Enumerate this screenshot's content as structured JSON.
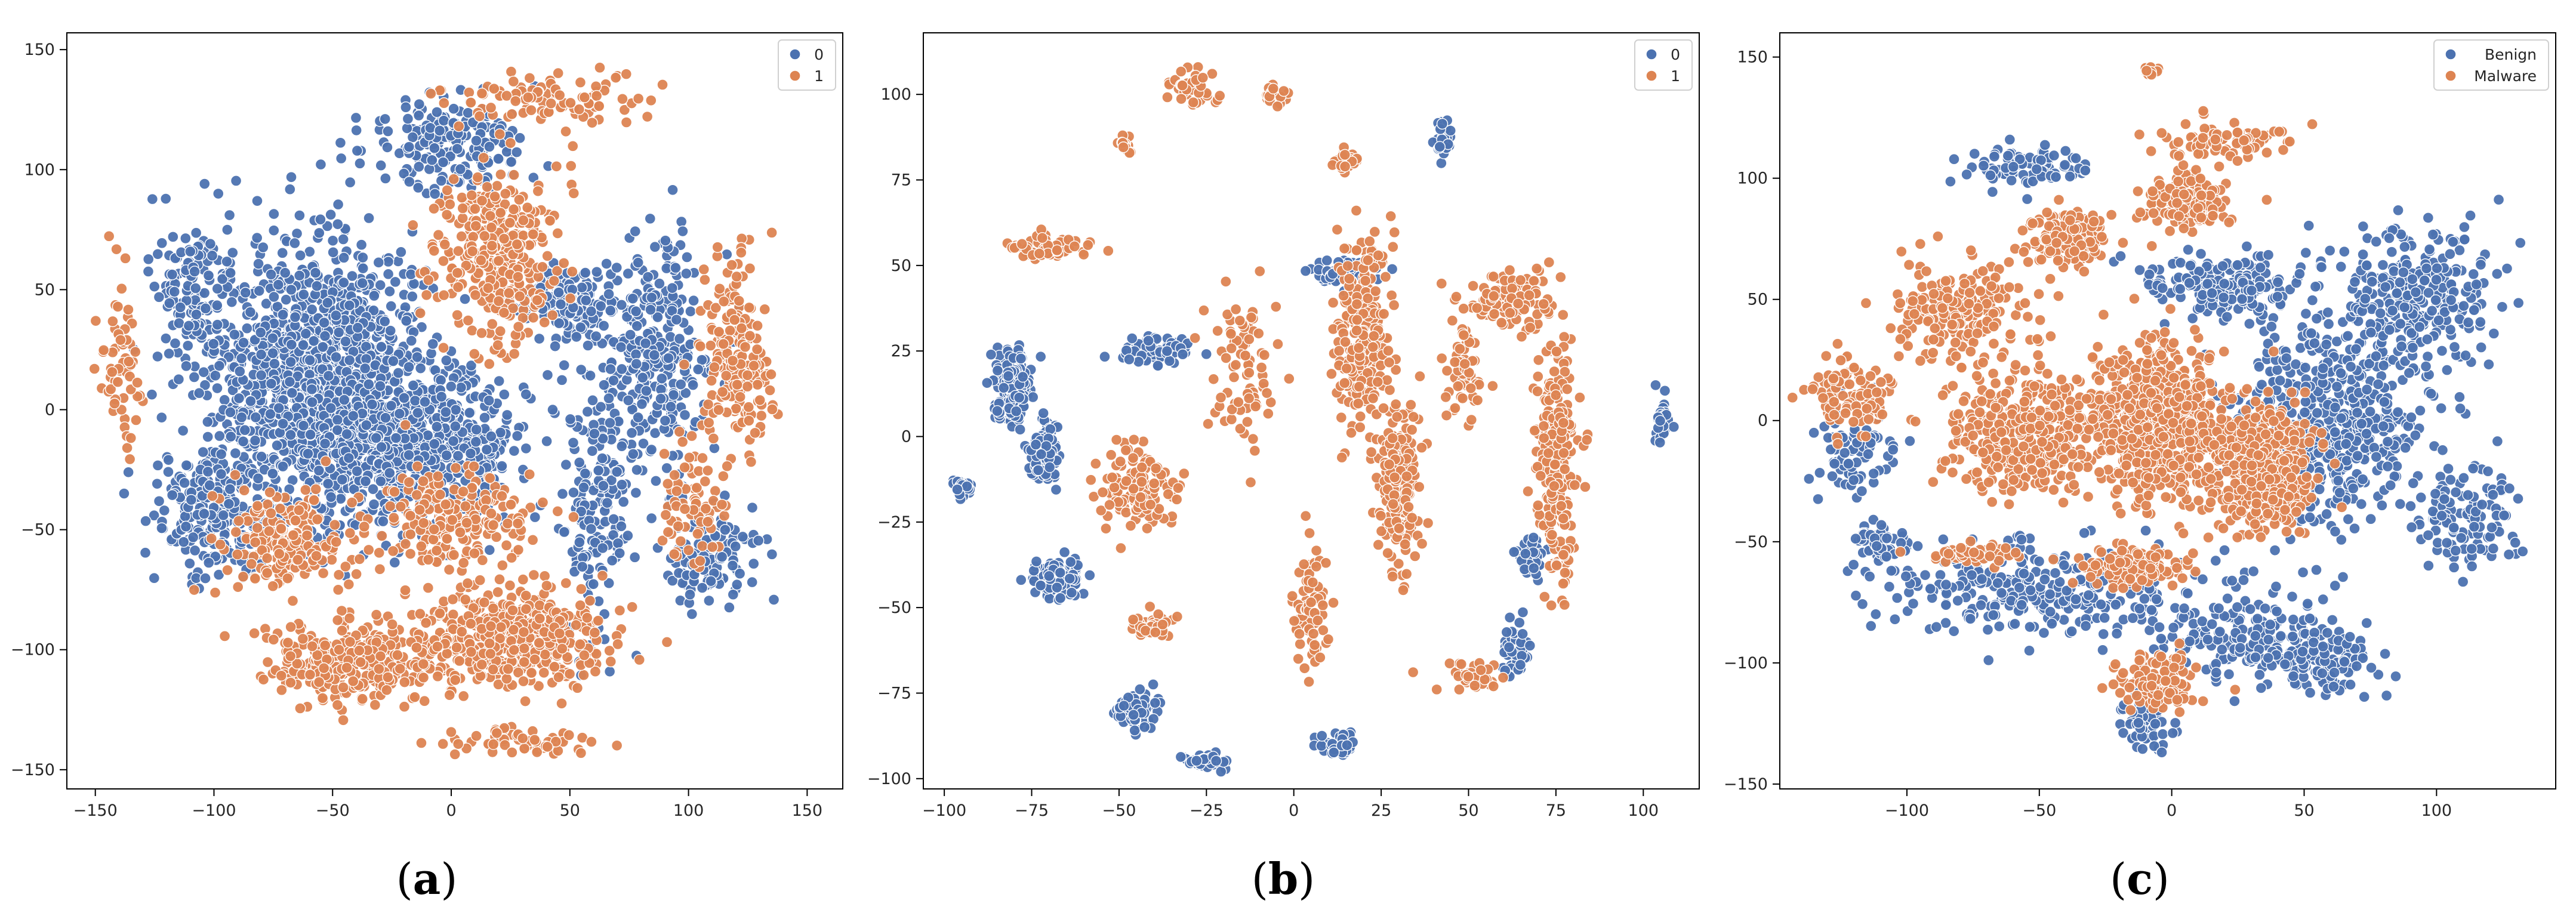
{
  "figure": {
    "captions": [
      "(a)",
      "(b)",
      "(c)"
    ],
    "caption_letters": [
      "a",
      "b",
      "c"
    ]
  },
  "colors": {
    "class0": "#4c72b0",
    "class1": "#dd8452"
  },
  "chart_data": [
    {
      "type": "scatter",
      "title": "",
      "xlabel": "",
      "ylabel": "",
      "xlim": [
        -162,
        165
      ],
      "ylim": [
        -158,
        157
      ],
      "xticks": [
        -150,
        -100,
        -50,
        0,
        50,
        100,
        150
      ],
      "yticks": [
        -150,
        -100,
        -50,
        0,
        50,
        100,
        150
      ],
      "grid": false,
      "legend_position": "top-right",
      "series": [
        {
          "name": "0",
          "color": "#4c72b0",
          "clusters": [
            {
              "cx": -55,
              "cy": 15,
              "rx": 45,
              "ry": 55,
              "n": 1200
            },
            {
              "cx": -15,
              "cy": -15,
              "rx": 45,
              "ry": 30,
              "n": 700
            },
            {
              "cx": -100,
              "cy": -40,
              "rx": 25,
              "ry": 30,
              "n": 250
            },
            {
              "cx": 0,
              "cy": 110,
              "rx": 35,
              "ry": 20,
              "n": 200
            },
            {
              "cx": 85,
              "cy": 20,
              "rx": 25,
              "ry": 50,
              "n": 300
            },
            {
              "cx": 110,
              "cy": -60,
              "rx": 20,
              "ry": 20,
              "n": 120
            },
            {
              "cx": 60,
              "cy": -40,
              "rx": 15,
              "ry": 40,
              "n": 160
            },
            {
              "cx": -110,
              "cy": 50,
              "rx": 15,
              "ry": 30,
              "n": 120
            },
            {
              "cx": 50,
              "cy": 45,
              "rx": 25,
              "ry": 15,
              "n": 150
            }
          ]
        },
        {
          "name": "1",
          "color": "#dd8452",
          "clusters": [
            {
              "cx": 25,
              "cy": -95,
              "rx": 40,
              "ry": 20,
              "n": 500
            },
            {
              "cx": -45,
              "cy": -105,
              "rx": 35,
              "ry": 15,
              "n": 300
            },
            {
              "cx": 20,
              "cy": 65,
              "rx": 25,
              "ry": 35,
              "n": 350
            },
            {
              "cx": 120,
              "cy": 20,
              "rx": 15,
              "ry": 40,
              "n": 200
            },
            {
              "cx": -70,
              "cy": -55,
              "rx": 30,
              "ry": 20,
              "n": 200
            },
            {
              "cx": 0,
              "cy": -45,
              "rx": 35,
              "ry": 20,
              "n": 200
            },
            {
              "cx": 40,
              "cy": 130,
              "rx": 40,
              "ry": 12,
              "n": 100
            },
            {
              "cx": 100,
              "cy": -40,
              "rx": 12,
              "ry": 25,
              "n": 70
            },
            {
              "cx": -140,
              "cy": 20,
              "rx": 8,
              "ry": 40,
              "n": 60
            },
            {
              "cx": 30,
              "cy": -138,
              "rx": 30,
              "ry": 5,
              "n": 60
            }
          ]
        }
      ]
    },
    {
      "type": "scatter",
      "title": "",
      "xlabel": "",
      "ylabel": "",
      "xlim": [
        -106,
        116
      ],
      "ylim": [
        -103,
        118
      ],
      "xticks": [
        -100,
        -75,
        -50,
        -25,
        0,
        25,
        50,
        75,
        100
      ],
      "yticks": [
        -100,
        -75,
        -50,
        -25,
        0,
        25,
        50,
        75,
        100
      ],
      "grid": false,
      "legend_position": "top-right",
      "series": [
        {
          "name": "0",
          "color": "#4c72b0",
          "clusters": [
            {
              "cx": -80,
              "cy": 15,
              "rx": 5,
              "ry": 10,
              "n": 200
            },
            {
              "cx": -72,
              "cy": -5,
              "rx": 4,
              "ry": 10,
              "n": 120
            },
            {
              "cx": -68,
              "cy": -42,
              "rx": 8,
              "ry": 5,
              "n": 120
            },
            {
              "cx": -40,
              "cy": 25,
              "rx": 10,
              "ry": 5,
              "n": 80
            },
            {
              "cx": -95,
              "cy": -15,
              "rx": 3,
              "ry": 3,
              "n": 25
            },
            {
              "cx": 13,
              "cy": 48,
              "rx": 8,
              "ry": 3,
              "n": 60
            },
            {
              "cx": 105,
              "cy": 5,
              "rx": 2,
              "ry": 8,
              "n": 25
            },
            {
              "cx": 43,
              "cy": 88,
              "rx": 3,
              "ry": 5,
              "n": 30
            },
            {
              "cx": -45,
              "cy": -80,
              "rx": 6,
              "ry": 6,
              "n": 60
            },
            {
              "cx": -25,
              "cy": -95,
              "rx": 6,
              "ry": 2,
              "n": 40
            },
            {
              "cx": 12,
              "cy": -90,
              "rx": 5,
              "ry": 4,
              "n": 50
            },
            {
              "cx": 68,
              "cy": -35,
              "rx": 4,
              "ry": 5,
              "n": 40
            },
            {
              "cx": 63,
              "cy": -62,
              "rx": 4,
              "ry": 8,
              "n": 40
            }
          ]
        },
        {
          "name": "1",
          "color": "#dd8452",
          "clusters": [
            {
              "cx": 20,
              "cy": 30,
              "rx": 8,
              "ry": 30,
              "n": 250
            },
            {
              "cx": 30,
              "cy": -15,
              "rx": 6,
              "ry": 25,
              "n": 200
            },
            {
              "cx": 75,
              "cy": -5,
              "rx": 6,
              "ry": 40,
              "n": 250
            },
            {
              "cx": 62,
              "cy": 40,
              "rx": 12,
              "ry": 8,
              "n": 120
            },
            {
              "cx": -70,
              "cy": 55,
              "rx": 12,
              "ry": 4,
              "n": 60
            },
            {
              "cx": -45,
              "cy": -15,
              "rx": 10,
              "ry": 12,
              "n": 120
            },
            {
              "cx": -15,
              "cy": 20,
              "rx": 10,
              "ry": 25,
              "n": 80
            },
            {
              "cx": -30,
              "cy": 102,
              "rx": 8,
              "ry": 5,
              "n": 40
            },
            {
              "cx": -5,
              "cy": 100,
              "rx": 3,
              "ry": 3,
              "n": 30
            },
            {
              "cx": 15,
              "cy": 80,
              "rx": 3,
              "ry": 3,
              "n": 30
            },
            {
              "cx": -48,
              "cy": 85,
              "rx": 2,
              "ry": 3,
              "n": 20
            },
            {
              "cx": -40,
              "cy": -55,
              "rx": 6,
              "ry": 4,
              "n": 40
            },
            {
              "cx": 5,
              "cy": -50,
              "rx": 6,
              "ry": 20,
              "n": 80
            },
            {
              "cx": 48,
              "cy": 20,
              "rx": 5,
              "ry": 15,
              "n": 60
            },
            {
              "cx": 50,
              "cy": -70,
              "rx": 8,
              "ry": 5,
              "n": 40
            }
          ]
        }
      ]
    },
    {
      "type": "scatter",
      "title": "",
      "xlabel": "",
      "ylabel": "",
      "xlim": [
        -148,
        145
      ],
      "ylim": [
        -152,
        160
      ],
      "xticks": [
        -100,
        -50,
        0,
        50,
        100
      ],
      "yticks": [
        -150,
        -100,
        -50,
        0,
        50,
        100,
        150
      ],
      "grid": false,
      "legend_position": "top-right",
      "series": [
        {
          "name": "Benign",
          "color": "#4c72b0",
          "clusters": [
            {
              "cx": 60,
              "cy": 0,
              "rx": 35,
              "ry": 40,
              "n": 500
            },
            {
              "cx": 90,
              "cy": 50,
              "rx": 30,
              "ry": 30,
              "n": 300
            },
            {
              "cx": 20,
              "cy": 55,
              "rx": 30,
              "ry": 12,
              "n": 200
            },
            {
              "cx": -50,
              "cy": -70,
              "rx": 60,
              "ry": 20,
              "n": 300
            },
            {
              "cx": 30,
              "cy": -90,
              "rx": 40,
              "ry": 20,
              "n": 200
            },
            {
              "cx": -55,
              "cy": 105,
              "rx": 25,
              "ry": 8,
              "n": 100
            },
            {
              "cx": -120,
              "cy": -15,
              "rx": 15,
              "ry": 20,
              "n": 80
            },
            {
              "cx": -110,
              "cy": -50,
              "rx": 10,
              "ry": 8,
              "n": 50
            },
            {
              "cx": 110,
              "cy": -40,
              "rx": 20,
              "ry": 20,
              "n": 120
            },
            {
              "cx": -10,
              "cy": -125,
              "rx": 10,
              "ry": 12,
              "n": 60
            },
            {
              "cx": 55,
              "cy": -100,
              "rx": 20,
              "ry": 15,
              "n": 100
            }
          ]
        },
        {
          "name": "Malware",
          "color": "#dd8452",
          "clusters": [
            {
              "cx": -5,
              "cy": 0,
              "rx": 25,
              "ry": 30,
              "n": 700
            },
            {
              "cx": 35,
              "cy": -20,
              "rx": 18,
              "ry": 25,
              "n": 500
            },
            {
              "cx": -55,
              "cy": -5,
              "rx": 30,
              "ry": 25,
              "n": 450
            },
            {
              "cx": 5,
              "cy": 90,
              "rx": 15,
              "ry": 10,
              "n": 200
            },
            {
              "cx": -80,
              "cy": 45,
              "rx": 25,
              "ry": 20,
              "n": 200
            },
            {
              "cx": -40,
              "cy": 75,
              "rx": 15,
              "ry": 12,
              "n": 150
            },
            {
              "cx": -120,
              "cy": 10,
              "rx": 15,
              "ry": 15,
              "n": 100
            },
            {
              "cx": -5,
              "cy": -108,
              "rx": 15,
              "ry": 12,
              "n": 120
            },
            {
              "cx": 20,
              "cy": 115,
              "rx": 25,
              "ry": 8,
              "n": 80
            },
            {
              "cx": -15,
              "cy": -60,
              "rx": 20,
              "ry": 8,
              "n": 120
            },
            {
              "cx": -75,
              "cy": -55,
              "rx": 15,
              "ry": 5,
              "n": 50
            },
            {
              "cx": -8,
              "cy": 144,
              "rx": 3,
              "ry": 2,
              "n": 15
            }
          ]
        }
      ]
    }
  ]
}
